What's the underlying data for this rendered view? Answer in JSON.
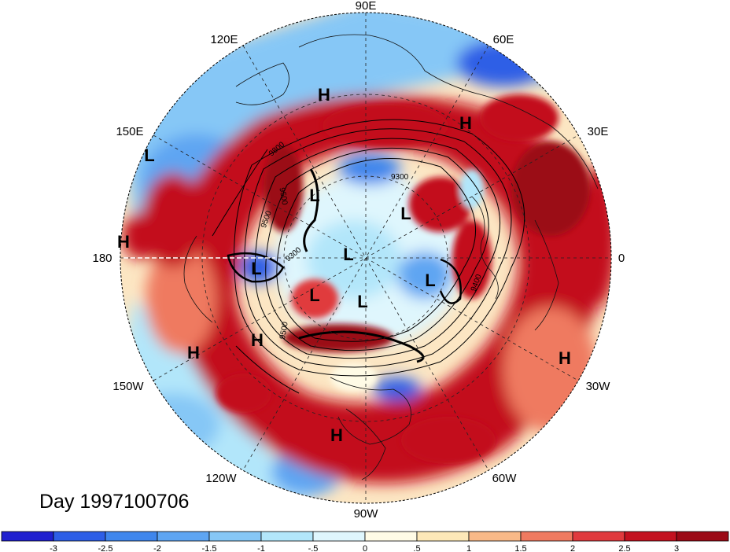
{
  "map": {
    "projection": "north-polar-stereographic",
    "day_label": "Day 1997100706",
    "longitude_labels": [
      {
        "label": "90E",
        "name": "lon-label-90e"
      },
      {
        "label": "120E",
        "name": "lon-label-120e"
      },
      {
        "label": "60E",
        "name": "lon-label-60e"
      },
      {
        "label": "150E",
        "name": "lon-label-150e"
      },
      {
        "label": "30E",
        "name": "lon-label-30e"
      },
      {
        "label": "180",
        "name": "lon-label-180"
      },
      {
        "label": "0",
        "name": "lon-label-0"
      },
      {
        "label": "150W",
        "name": "lon-label-150w"
      },
      {
        "label": "30W",
        "name": "lon-label-30w"
      },
      {
        "label": "120W",
        "name": "lon-label-120w"
      },
      {
        "label": "60W",
        "name": "lon-label-60w"
      },
      {
        "label": "90W",
        "name": "lon-label-90w"
      }
    ],
    "pressure_markers": [
      {
        "label": "H"
      },
      {
        "label": "H"
      },
      {
        "label": "L"
      },
      {
        "label": "H"
      },
      {
        "label": "L"
      },
      {
        "label": "L"
      },
      {
        "label": "L"
      },
      {
        "label": "L"
      },
      {
        "label": "L"
      },
      {
        "label": "L"
      },
      {
        "label": "L"
      },
      {
        "label": "H"
      },
      {
        "label": "H"
      },
      {
        "label": "H"
      },
      {
        "label": "H"
      }
    ],
    "contour_labels": [
      "9800",
      "9300",
      "9500",
      "9300",
      "9500",
      "9400",
      "9500"
    ],
    "colors": {
      "strong_positive": "#a50f15",
      "positive": "#e34a33",
      "weak_positive": "#fdd49e",
      "neutral": "#fff7e0",
      "weak_negative": "#cdeffb",
      "negative": "#4aa3e8",
      "strong_negative": "#1d2fd0"
    }
  },
  "colorbar": {
    "ticks": [
      "-3",
      "-2.5",
      "-2",
      "-1.5",
      "-1",
      "-.5",
      "0",
      ".5",
      "1",
      "1.5",
      "2",
      "2.5",
      "3"
    ],
    "colors": [
      "#1f1fcf",
      "#2d5ee6",
      "#3f86ec",
      "#5ea5f2",
      "#86c7f6",
      "#b2e6fa",
      "#dff6fd",
      "#fffbe6",
      "#fde8b8",
      "#f8b988",
      "#ef7a60",
      "#e03a3e",
      "#c3111f",
      "#9b0915"
    ]
  }
}
